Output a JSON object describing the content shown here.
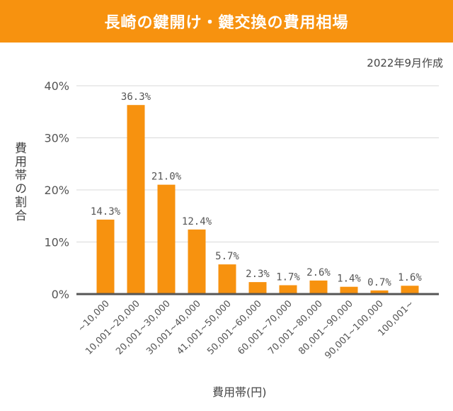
{
  "title": "長崎の鍵開け・鍵交換の費用相場",
  "date": "2022年9月作成",
  "chart_data": {
    "type": "bar",
    "title": "長崎の鍵開け・鍵交換の費用相場",
    "xlabel": "費用帯(円)",
    "ylabel": "費用帯の割合",
    "categories": [
      "~10,000",
      "10,001~20,000",
      "20,001~30,000",
      "30,001~40,000",
      "41,001~50,000",
      "50,001~60,000",
      "60,001~70,000",
      "70,001~80,000",
      "80,001~90,000",
      "90,001~100,000",
      "100,001~"
    ],
    "values": [
      14.3,
      36.3,
      21.0,
      12.4,
      5.7,
      2.3,
      1.7,
      2.6,
      1.4,
      0.7,
      1.6
    ],
    "data_labels": [
      "14.3%",
      "36.3%",
      "21.0%",
      "12.4%",
      "5.7%",
      "2.3%",
      "1.7%",
      "2.6%",
      "1.4%",
      "0.7%",
      "1.6%"
    ],
    "yticks": [
      "0%",
      "10%",
      "20%",
      "30%",
      "40%"
    ],
    "ylim": [
      0,
      40
    ],
    "grid": true,
    "bar_color": "#f7920f"
  }
}
